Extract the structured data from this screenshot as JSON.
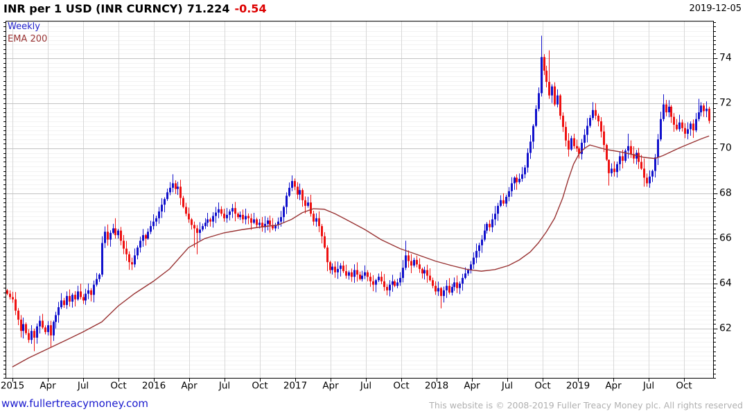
{
  "header": {
    "instrument": "INR per 1 USD (INR CURNCY)",
    "last_price": "71.224",
    "change": "-0.54",
    "date": "2019-12-05"
  },
  "legend": {
    "series1": "Weekly",
    "series2": "EMA 200"
  },
  "footer": {
    "link": "www.fullertreacymoney.com",
    "copyright": "This website is © 2008-2019 Fuller Treacy Money plc. All rights reserved"
  },
  "colors": {
    "up_candle": "#1111cc",
    "down_candle": "#ee1111",
    "ema_line": "#993333",
    "major_grid": "#c2c2c2",
    "minor_grid": "#f2f2f2",
    "vertical_grid": "#d8d8d8",
    "axis": "#000000",
    "change_text": "#dd0000",
    "link_text": "#1a1ace",
    "copyright_text": "#b0b0b0"
  },
  "chart_data": {
    "type": "candlestick",
    "title": "INR per 1 USD (INR CURNCY)",
    "frequency": "Weekly",
    "overlay": "EMA 200",
    "legend_position": "top-left",
    "grid": "on",
    "y_axis": {
      "side": "right",
      "ticks": [
        62,
        64,
        66,
        68,
        70,
        72,
        74
      ],
      "minor_step": 0.2,
      "range": [
        59.8,
        75.7
      ]
    },
    "x_axis": {
      "unit": "months from Jan 2015",
      "ticks": [
        {
          "m": 0,
          "label": "2015"
        },
        {
          "m": 3,
          "label": "Apr"
        },
        {
          "m": 6,
          "label": "Jul"
        },
        {
          "m": 9,
          "label": "Oct"
        },
        {
          "m": 12,
          "label": "2016"
        },
        {
          "m": 15,
          "label": "Apr"
        },
        {
          "m": 18,
          "label": "Jul"
        },
        {
          "m": 21,
          "label": "Oct"
        },
        {
          "m": 24,
          "label": "2017"
        },
        {
          "m": 27,
          "label": "Apr"
        },
        {
          "m": 30,
          "label": "Jul"
        },
        {
          "m": 33,
          "label": "Oct"
        },
        {
          "m": 36,
          "label": "2018"
        },
        {
          "m": 39,
          "label": "Apr"
        },
        {
          "m": 42,
          "label": "Jul"
        },
        {
          "m": 45,
          "label": "Oct"
        },
        {
          "m": 48,
          "label": "2019"
        },
        {
          "m": 51,
          "label": "Apr"
        },
        {
          "m": 54,
          "label": "Jul"
        },
        {
          "m": 57,
          "label": "Oct"
        }
      ]
    },
    "weeks_total": 260,
    "first_week_is": "mid-Dec 2014",
    "weekly_closes": [
      63.55,
      63.4,
      63.3,
      62.8,
      62.4,
      61.9,
      62.2,
      61.8,
      61.5,
      61.9,
      61.6,
      62.1,
      62.35,
      62.05,
      61.85,
      62.15,
      61.7,
      62.3,
      62.6,
      62.95,
      63.25,
      63.05,
      63.45,
      63.2,
      63.5,
      63.3,
      63.65,
      63.4,
      63.25,
      63.55,
      63.7,
      63.5,
      63.95,
      64.2,
      64.4,
      65.8,
      66.3,
      65.95,
      66.25,
      66.45,
      66.15,
      66.35,
      65.9,
      65.55,
      65.3,
      64.95,
      64.85,
      65.25,
      65.6,
      65.9,
      66.15,
      66.0,
      66.3,
      66.55,
      66.75,
      66.9,
      67.2,
      67.5,
      67.75,
      68.05,
      68.25,
      68.45,
      68.2,
      68.3,
      67.8,
      67.4,
      67.1,
      66.85,
      66.6,
      66.45,
      66.25,
      66.4,
      66.55,
      66.7,
      66.85,
      66.75,
      67.0,
      67.15,
      67.3,
      67.1,
      66.9,
      67.05,
      67.2,
      67.35,
      67.1,
      66.95,
      67.05,
      66.85,
      67.0,
      66.9,
      66.7,
      66.85,
      66.6,
      66.7,
      66.5,
      66.65,
      66.8,
      66.6,
      66.45,
      66.6,
      66.75,
      66.95,
      67.4,
      67.9,
      68.25,
      68.55,
      68.3,
      67.95,
      68.15,
      67.7,
      67.45,
      67.6,
      67.1,
      66.75,
      66.9,
      66.55,
      66.1,
      65.6,
      64.95,
      64.6,
      64.75,
      64.5,
      64.65,
      64.8,
      64.55,
      64.35,
      64.5,
      64.3,
      64.6,
      64.4,
      64.2,
      64.35,
      64.5,
      64.3,
      64.1,
      63.95,
      64.15,
      64.3,
      64.1,
      63.85,
      63.7,
      63.95,
      64.1,
      63.9,
      64.05,
      64.25,
      64.7,
      65.25,
      65.0,
      64.8,
      65.05,
      64.85,
      64.65,
      64.45,
      64.6,
      64.35,
      64.15,
      63.9,
      63.65,
      63.8,
      63.45,
      63.7,
      63.9,
      63.6,
      63.85,
      64.05,
      63.8,
      64.0,
      64.25,
      64.45,
      64.6,
      64.85,
      65.15,
      65.45,
      65.7,
      65.95,
      66.35,
      66.65,
      66.5,
      66.85,
      67.1,
      67.45,
      67.7,
      67.55,
      67.85,
      68.1,
      68.45,
      68.7,
      68.5,
      68.65,
      68.85,
      69.15,
      69.8,
      70.3,
      71.0,
      71.75,
      72.45,
      74.05,
      73.45,
      72.95,
      72.35,
      72.75,
      71.95,
      72.35,
      71.45,
      70.95,
      70.35,
      69.95,
      70.45,
      70.1,
      70.0,
      69.75,
      70.25,
      70.6,
      71.0,
      71.35,
      71.7,
      71.45,
      71.2,
      70.75,
      70.15,
      69.5,
      68.9,
      69.1,
      68.95,
      69.3,
      69.65,
      69.45,
      69.9,
      70.1,
      69.75,
      69.55,
      69.8,
      69.4,
      69.1,
      68.7,
      68.45,
      68.75,
      69.0,
      69.6,
      70.4,
      71.3,
      71.95,
      71.6,
      71.85,
      71.4,
      71.05,
      70.85,
      71.15,
      70.9,
      70.65,
      70.85,
      71.1,
      70.8,
      71.3,
      71.6,
      71.9,
      71.65,
      71.76,
      71.22
    ],
    "wick_overrides": {
      "10": [
        62.0,
        61.0
      ],
      "16": [
        62.35,
        61.15
      ],
      "35": [
        66.1,
        64.3
      ],
      "40": [
        66.9,
        66.0
      ],
      "46": [
        65.15,
        64.6
      ],
      "61": [
        68.85,
        68.05
      ],
      "69": [
        66.75,
        65.6
      ],
      "70": [
        66.6,
        65.3
      ],
      "78": [
        67.6,
        66.9
      ],
      "105": [
        68.8,
        68.1
      ],
      "118": [
        65.7,
        64.55
      ],
      "147": [
        65.9,
        64.6
      ],
      "160": [
        63.85,
        62.9
      ],
      "197": [
        75.0,
        72.3
      ],
      "200": [
        74.35,
        72.2
      ],
      "216": [
        72.05,
        71.25
      ],
      "222": [
        69.4,
        68.35
      ],
      "229": [
        70.65,
        69.55
      ],
      "235": [
        69.55,
        68.3
      ],
      "242": [
        72.4,
        71.2
      ],
      "255": [
        72.2,
        71.2
      ],
      "257": [
        72.0,
        71.4
      ],
      "259": [
        71.85,
        71.1
      ]
    },
    "ema_points": [
      [
        2,
        60.3
      ],
      [
        8,
        60.7
      ],
      [
        15,
        61.1
      ],
      [
        22,
        61.5
      ],
      [
        28,
        61.85
      ],
      [
        35,
        62.3
      ],
      [
        41,
        63.0
      ],
      [
        47,
        63.55
      ],
      [
        54,
        64.1
      ],
      [
        60,
        64.65
      ],
      [
        67,
        65.6
      ],
      [
        73,
        66.0
      ],
      [
        80,
        66.25
      ],
      [
        87,
        66.4
      ],
      [
        93,
        66.5
      ],
      [
        100,
        66.6
      ],
      [
        105,
        66.85
      ],
      [
        109,
        67.15
      ],
      [
        113,
        67.32
      ],
      [
        117,
        67.3
      ],
      [
        121,
        67.1
      ],
      [
        125,
        66.85
      ],
      [
        132,
        66.4
      ],
      [
        138,
        65.95
      ],
      [
        145,
        65.55
      ],
      [
        151,
        65.3
      ],
      [
        158,
        65.0
      ],
      [
        164,
        64.8
      ],
      [
        170,
        64.62
      ],
      [
        175,
        64.55
      ],
      [
        180,
        64.62
      ],
      [
        185,
        64.8
      ],
      [
        189,
        65.05
      ],
      [
        193,
        65.4
      ],
      [
        196,
        65.8
      ],
      [
        199,
        66.3
      ],
      [
        202,
        66.9
      ],
      [
        205,
        67.8
      ],
      [
        207,
        68.6
      ],
      [
        209,
        69.3
      ],
      [
        211,
        69.75
      ],
      [
        213,
        70.0
      ],
      [
        215,
        70.15
      ],
      [
        218,
        70.05
      ],
      [
        221,
        69.95
      ],
      [
        226,
        69.85
      ],
      [
        231,
        69.72
      ],
      [
        235,
        69.6
      ],
      [
        239,
        69.55
      ],
      [
        242,
        69.68
      ],
      [
        245,
        69.85
      ],
      [
        248,
        70.02
      ],
      [
        252,
        70.22
      ],
      [
        256,
        70.42
      ],
      [
        259,
        70.55
      ]
    ]
  }
}
